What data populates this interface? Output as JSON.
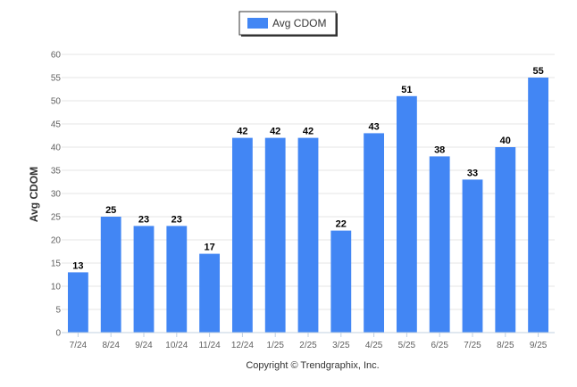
{
  "chart_data": {
    "type": "bar",
    "categories": [
      "7/24",
      "8/24",
      "9/24",
      "10/24",
      "11/24",
      "12/24",
      "1/25",
      "2/25",
      "3/25",
      "4/25",
      "5/25",
      "6/25",
      "7/25",
      "8/25",
      "9/25"
    ],
    "series": [
      {
        "name": "Avg CDOM",
        "values": [
          13,
          25,
          23,
          23,
          17,
          42,
          42,
          42,
          22,
          43,
          51,
          38,
          33,
          40,
          55
        ]
      }
    ],
    "ylabel": "Avg CDOM",
    "xlabel": "",
    "ylim": [
      0,
      60
    ],
    "ytick_step": 5,
    "grid": true,
    "legend_position": "top-center",
    "data_labels": true,
    "bar_color": "#4286f4"
  },
  "credits": "Copyright © Trendgraphix, Inc."
}
